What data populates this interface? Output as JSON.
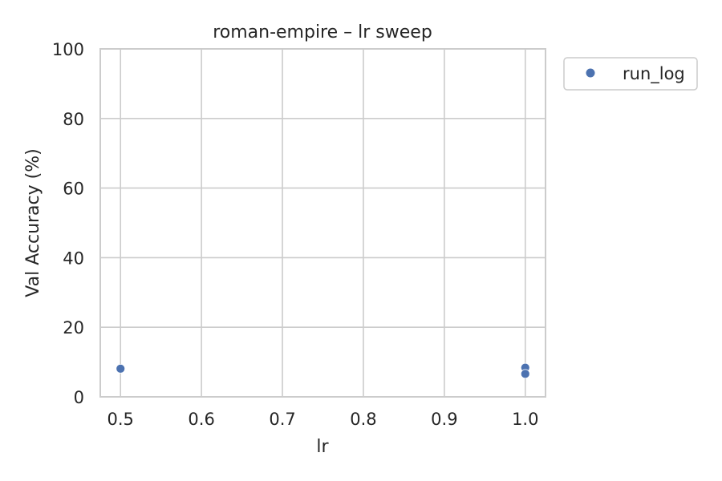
{
  "chart_data": {
    "type": "scatter",
    "title": "roman-empire – lr sweep",
    "xlabel": "lr",
    "ylabel": "Val Accuracy (%)",
    "xlim": [
      0.475,
      1.025
    ],
    "ylim": [
      0,
      100
    ],
    "xticks": [
      0.5,
      0.6,
      0.7,
      0.8,
      0.9,
      1.0
    ],
    "xtick_labels": [
      "0.5",
      "0.6",
      "0.7",
      "0.8",
      "0.9",
      "1.0"
    ],
    "yticks": [
      0,
      20,
      40,
      60,
      80,
      100
    ],
    "ytick_labels": [
      "0",
      "20",
      "40",
      "60",
      "80",
      "100"
    ],
    "grid": true,
    "legend_position": "outside-top-right",
    "series": [
      {
        "name": "run_log",
        "color": "#4c72b0",
        "points": [
          {
            "x": 0.5,
            "y": 8.1
          },
          {
            "x": 1.0,
            "y": 8.4
          },
          {
            "x": 1.0,
            "y": 6.6
          }
        ]
      }
    ]
  }
}
